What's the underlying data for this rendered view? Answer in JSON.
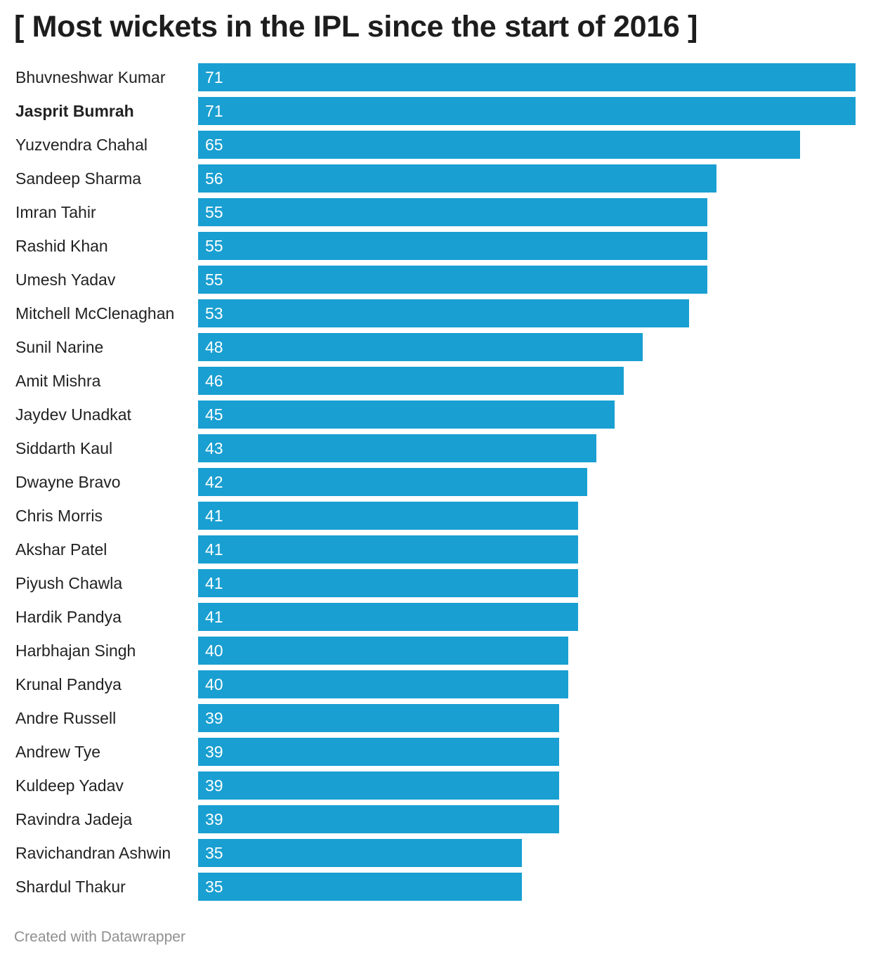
{
  "chart_data": {
    "type": "bar",
    "orientation": "horizontal",
    "title": "[ Most wickets in the IPL since the start of 2016 ]",
    "categories": [
      "Bhuvneshwar Kumar",
      "Jasprit Bumrah",
      "Yuzvendra Chahal",
      "Sandeep Sharma",
      "Imran Tahir",
      "Rashid Khan",
      "Umesh Yadav",
      "Mitchell McClenaghan",
      "Sunil Narine",
      "Amit Mishra",
      "Jaydev Unadkat",
      "Siddarth Kaul",
      "Dwayne Bravo",
      "Chris Morris",
      "Akshar Patel",
      "Piyush Chawla",
      "Hardik Pandya",
      "Harbhajan Singh",
      "Krunal Pandya",
      "Andre Russell",
      "Andrew Tye",
      "Kuldeep Yadav",
      "Ravindra Jadeja",
      "Ravichandran Ashwin",
      "Shardul Thakur"
    ],
    "values": [
      71,
      71,
      65,
      56,
      55,
      55,
      55,
      53,
      48,
      46,
      45,
      43,
      42,
      41,
      41,
      41,
      41,
      40,
      40,
      39,
      39,
      39,
      39,
      35,
      35
    ],
    "highlighted": [
      "Jasprit Bumrah"
    ],
    "xlim": [
      0,
      71
    ],
    "grid": false,
    "legend": "none",
    "bar_color": "#199fd1",
    "value_label_color": "#ffffff"
  },
  "footer": {
    "credit": "Created with Datawrapper"
  }
}
